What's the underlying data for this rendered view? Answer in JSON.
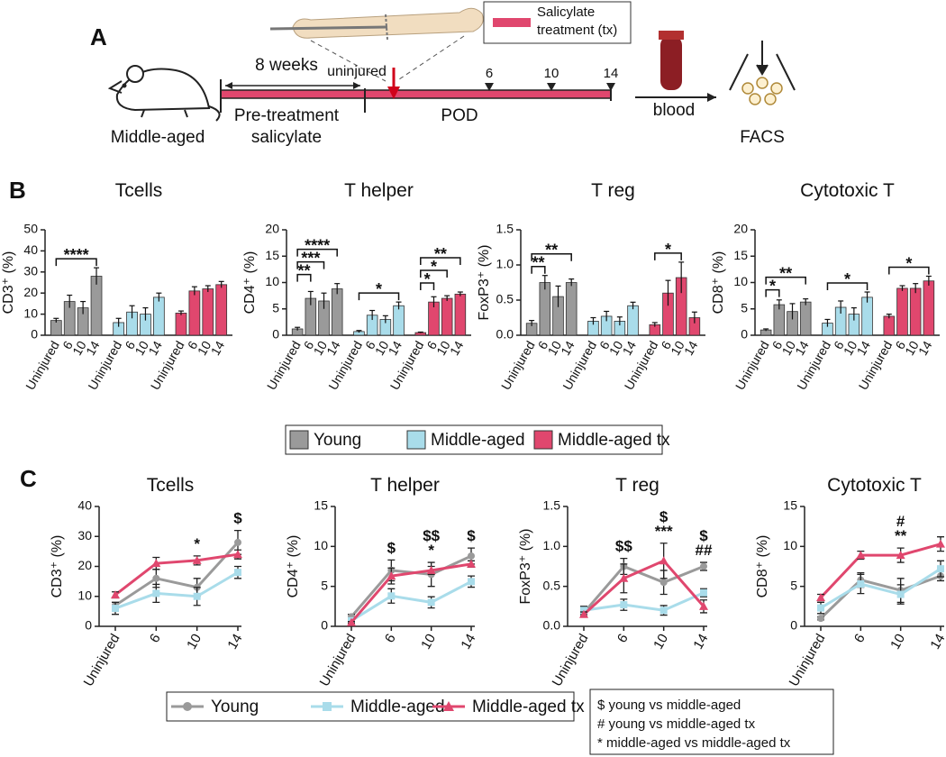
{
  "panel_labels": [
    "A",
    "B",
    "C"
  ],
  "panel_a": {
    "mouse_label": "Middle-aged",
    "duration": "8 weeks",
    "pretreatment": [
      "Pre-treatment",
      "salicylate"
    ],
    "uninjured": "uninjured",
    "pod": "POD",
    "pod_ticks": [
      "6",
      "10",
      "14"
    ],
    "treatment_legend": [
      "Salicylate",
      "treatment (tx)"
    ],
    "blood": "blood",
    "facs": "FACS"
  },
  "chart_data": [
    {
      "type": "bar",
      "title": "Tcells",
      "y_label": "CD3⁺ (%)",
      "categories": [
        "Uninjured",
        "6",
        "10",
        "14"
      ],
      "ylim": [
        0,
        50
      ],
      "yticks": [
        0,
        10,
        20,
        30,
        40,
        50
      ],
      "series": [
        {
          "name": "Young",
          "color": "#9a9a9a",
          "values": [
            7,
            16,
            13,
            28
          ],
          "errors": [
            1,
            3,
            3,
            4
          ]
        },
        {
          "name": "Middle-aged",
          "color": "#a9dcea",
          "values": [
            6,
            11,
            10,
            18
          ],
          "errors": [
            2,
            3,
            3,
            2
          ]
        },
        {
          "name": "Middle-aged tx",
          "color": "#e0476e",
          "values": [
            10.5,
            21,
            22,
            24
          ],
          "errors": [
            1,
            2,
            1.5,
            1.5
          ]
        }
      ],
      "annotations": [
        {
          "text": "****",
          "series": 0,
          "from": 0,
          "to": 3
        }
      ]
    },
    {
      "type": "bar",
      "title": "T helper",
      "y_label": "CD4⁺ (%)",
      "categories": [
        "Uninjured",
        "6",
        "10",
        "14"
      ],
      "ylim": [
        0,
        20
      ],
      "yticks": [
        0,
        5,
        10,
        15,
        20
      ],
      "series": [
        {
          "name": "Young",
          "color": "#9a9a9a",
          "values": [
            1.2,
            7,
            6.5,
            8.8
          ],
          "errors": [
            0.3,
            1.3,
            1.5,
            1
          ]
        },
        {
          "name": "Middle-aged",
          "color": "#a9dcea",
          "values": [
            0.7,
            3.8,
            3,
            5.6
          ],
          "errors": [
            0.2,
            0.9,
            0.7,
            0.7
          ]
        },
        {
          "name": "Middle-aged tx",
          "color": "#e0476e",
          "values": [
            0.5,
            6.3,
            7,
            7.8
          ],
          "errors": [
            0.1,
            1,
            0.5,
            0.4
          ]
        }
      ],
      "annotations": [
        {
          "text": "**",
          "series": 0,
          "from": 0,
          "to": 1
        },
        {
          "text": "***",
          "series": 0,
          "from": 0,
          "to": 2
        },
        {
          "text": "****",
          "series": 0,
          "from": 0,
          "to": 3
        },
        {
          "text": "*",
          "series": 1,
          "from": 0,
          "to": 3
        },
        {
          "text": "*",
          "series": 2,
          "from": 0,
          "to": 1
        },
        {
          "text": "*",
          "series": 2,
          "from": 0,
          "to": 2
        },
        {
          "text": "**",
          "series": 2,
          "from": 0,
          "to": 3
        }
      ]
    },
    {
      "type": "bar",
      "title": "T reg",
      "y_label": "FoxP3⁺ (%)",
      "categories": [
        "Uninjured",
        "6",
        "10",
        "14"
      ],
      "ylim": [
        0,
        1.5
      ],
      "yticks": [
        {
          "value": 0,
          "label": "0.0"
        },
        0.5,
        {
          "value": 1,
          "label": "1.0"
        },
        1.5
      ],
      "series": [
        {
          "name": "Young",
          "color": "#9a9a9a",
          "values": [
            0.17,
            0.75,
            0.55,
            0.75
          ],
          "errors": [
            0.04,
            0.1,
            0.15,
            0.05
          ]
        },
        {
          "name": "Middle-aged",
          "color": "#a9dcea",
          "values": [
            0.2,
            0.27,
            0.2,
            0.42
          ],
          "errors": [
            0.05,
            0.07,
            0.06,
            0.05
          ]
        },
        {
          "name": "Middle-aged tx",
          "color": "#e0476e",
          "values": [
            0.15,
            0.6,
            0.82,
            0.25
          ],
          "errors": [
            0.03,
            0.18,
            0.22,
            0.08
          ]
        }
      ],
      "annotations": [
        {
          "text": "**",
          "series": 0,
          "from": 0,
          "to": 1
        },
        {
          "text": "**",
          "series": 0,
          "from": 0,
          "to": 3
        },
        {
          "text": "*",
          "series": 2,
          "from": 0,
          "to": 2
        }
      ]
    },
    {
      "type": "bar",
      "title": "Cytotoxic T",
      "y_label": "CD8⁺ (%)",
      "categories": [
        "Uninjured",
        "6",
        "10",
        "14"
      ],
      "ylim": [
        0,
        20
      ],
      "yticks": [
        0,
        5,
        10,
        15,
        20
      ],
      "series": [
        {
          "name": "Young",
          "color": "#9a9a9a",
          "values": [
            1,
            5.8,
            4.5,
            6.3
          ],
          "errors": [
            0.2,
            0.9,
            1.5,
            0.6
          ]
        },
        {
          "name": "Middle-aged",
          "color": "#a9dcea",
          "values": [
            2.3,
            5.3,
            4,
            7.2
          ],
          "errors": [
            0.7,
            1.2,
            1.2,
            1
          ]
        },
        {
          "name": "Middle-aged tx",
          "color": "#e0476e",
          "values": [
            3.6,
            8.9,
            8.9,
            10.3
          ],
          "errors": [
            0.4,
            0.5,
            0.9,
            0.9
          ]
        }
      ],
      "annotations": [
        {
          "text": "*",
          "series": 0,
          "from": 0,
          "to": 1
        },
        {
          "text": "**",
          "series": 0,
          "from": 0,
          "to": 3
        },
        {
          "text": "*",
          "series": 1,
          "from": 0,
          "to": 3
        },
        {
          "text": "*",
          "series": 2,
          "from": 0,
          "to": 3
        }
      ]
    },
    {
      "type": "line",
      "title": "Tcells",
      "y_label": "CD3⁺ (%)",
      "categories": [
        "Uninjured",
        "6",
        "10",
        "14"
      ],
      "ylim": [
        0,
        40
      ],
      "yticks": [
        0,
        10,
        20,
        30,
        40
      ],
      "series": [
        {
          "name": "Young",
          "color": "#9a9a9a",
          "marker": "circle",
          "values": [
            7,
            16,
            13,
            28
          ],
          "errors": [
            1,
            3,
            3,
            4
          ]
        },
        {
          "name": "Middle-aged",
          "color": "#a9dcea",
          "marker": "square",
          "values": [
            6,
            11,
            10,
            18
          ],
          "errors": [
            2,
            3,
            3,
            2
          ]
        },
        {
          "name": "Middle-aged tx",
          "color": "#e0476e",
          "marker": "triangle",
          "values": [
            10.5,
            21,
            22,
            24
          ],
          "errors": [
            1,
            2,
            1.5,
            1.5
          ]
        }
      ],
      "annotations": [
        {
          "at": 2,
          "texts": [
            "*"
          ]
        },
        {
          "at": 3,
          "texts": [
            "$"
          ]
        }
      ]
    },
    {
      "type": "line",
      "title": "T helper",
      "y_label": "CD4⁺ (%)",
      "categories": [
        "Uninjured",
        "6",
        "10",
        "14"
      ],
      "ylim": [
        0,
        15
      ],
      "yticks": [
        0,
        5,
        10,
        15
      ],
      "series": [
        {
          "name": "Young",
          "color": "#9a9a9a",
          "marker": "circle",
          "values": [
            1.2,
            7,
            6.5,
            8.8
          ],
          "errors": [
            0.3,
            1.3,
            1.5,
            1
          ]
        },
        {
          "name": "Middle-aged",
          "color": "#a9dcea",
          "marker": "square",
          "values": [
            0.7,
            3.8,
            3,
            5.6
          ],
          "errors": [
            0.2,
            0.9,
            0.7,
            0.7
          ]
        },
        {
          "name": "Middle-aged tx",
          "color": "#e0476e",
          "marker": "triangle",
          "values": [
            0.5,
            6.3,
            7,
            7.8
          ],
          "errors": [
            0.1,
            1,
            0.5,
            0.4
          ]
        }
      ],
      "annotations": [
        {
          "at": 1,
          "texts": [
            "$"
          ]
        },
        {
          "at": 2,
          "texts": [
            "$$",
            "*"
          ]
        },
        {
          "at": 3,
          "texts": [
            "$"
          ]
        }
      ]
    },
    {
      "type": "line",
      "title": "T reg",
      "y_label": "FoxP3⁺ (%)",
      "categories": [
        "Uninjured",
        "6",
        "10",
        "14"
      ],
      "ylim": [
        0,
        1.5
      ],
      "yticks": [
        {
          "value": 0,
          "label": "0.0"
        },
        0.5,
        {
          "value": 1,
          "label": "1.0"
        },
        1.5
      ],
      "series": [
        {
          "name": "Young",
          "color": "#9a9a9a",
          "marker": "circle",
          "values": [
            0.17,
            0.75,
            0.55,
            0.75
          ],
          "errors": [
            0.04,
            0.1,
            0.15,
            0.05
          ]
        },
        {
          "name": "Middle-aged",
          "color": "#a9dcea",
          "marker": "square",
          "values": [
            0.2,
            0.27,
            0.2,
            0.42
          ],
          "errors": [
            0.05,
            0.07,
            0.06,
            0.05
          ]
        },
        {
          "name": "Middle-aged tx",
          "color": "#e0476e",
          "marker": "triangle",
          "values": [
            0.15,
            0.6,
            0.82,
            0.25
          ],
          "errors": [
            0.03,
            0.18,
            0.22,
            0.08
          ]
        }
      ],
      "annotations": [
        {
          "at": 1,
          "texts": [
            "$$"
          ]
        },
        {
          "at": 2,
          "texts": [
            "$",
            "***"
          ]
        },
        {
          "at": 3,
          "texts": [
            "$",
            "##"
          ]
        }
      ]
    },
    {
      "type": "line",
      "title": "Cytotoxic T",
      "y_label": "CD8⁺ (%)",
      "categories": [
        "Uninjured",
        "6",
        "10",
        "14"
      ],
      "ylim": [
        0,
        15
      ],
      "yticks": [
        0,
        5,
        10,
        15
      ],
      "series": [
        {
          "name": "Young",
          "color": "#9a9a9a",
          "marker": "circle",
          "values": [
            1,
            5.8,
            4.5,
            6.3
          ],
          "errors": [
            0.2,
            0.9,
            1.5,
            0.6
          ]
        },
        {
          "name": "Middle-aged",
          "color": "#a9dcea",
          "marker": "square",
          "values": [
            2.3,
            5.3,
            4,
            7.2
          ],
          "errors": [
            0.7,
            1.2,
            1.2,
            1
          ]
        },
        {
          "name": "Middle-aged tx",
          "color": "#e0476e",
          "marker": "triangle",
          "values": [
            3.6,
            8.9,
            8.9,
            10.3
          ],
          "errors": [
            0.4,
            0.5,
            0.9,
            0.9
          ]
        }
      ],
      "annotations": [
        {
          "at": 2,
          "texts": [
            "#",
            "**"
          ]
        }
      ]
    }
  ],
  "notes": [
    "$ young vs middle-aged",
    "# young vs middle-aged tx",
    "* middle-aged vs middle-aged tx"
  ]
}
